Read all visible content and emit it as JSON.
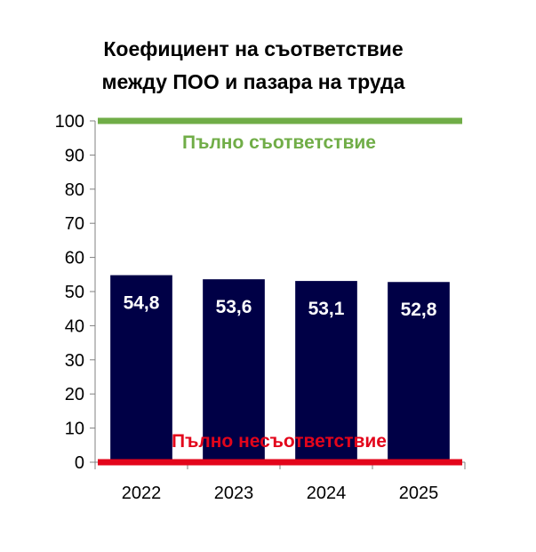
{
  "chart_data": {
    "type": "bar",
    "title_lines": [
      "Коефициент на съответствие",
      "между ПОО и пазара на труда"
    ],
    "categories": [
      "2022",
      "2023",
      "2024",
      "2025"
    ],
    "values": [
      54.8,
      53.6,
      53.1,
      52.8
    ],
    "data_labels": [
      "54,8",
      "53,6",
      "53,1",
      "52,8"
    ],
    "ylim": [
      0,
      100
    ],
    "yticks": [
      "0",
      "10",
      "20",
      "30",
      "40",
      "50",
      "60",
      "70",
      "80",
      "90",
      "100"
    ],
    "grid": false,
    "bar_color": "#000046",
    "reference_lines": [
      {
        "value": 100,
        "label": "Пълно съответствие",
        "color": "#70ad47"
      },
      {
        "value": 0,
        "label": "Пълно несъответствие",
        "color": "#e3051b"
      }
    ]
  }
}
